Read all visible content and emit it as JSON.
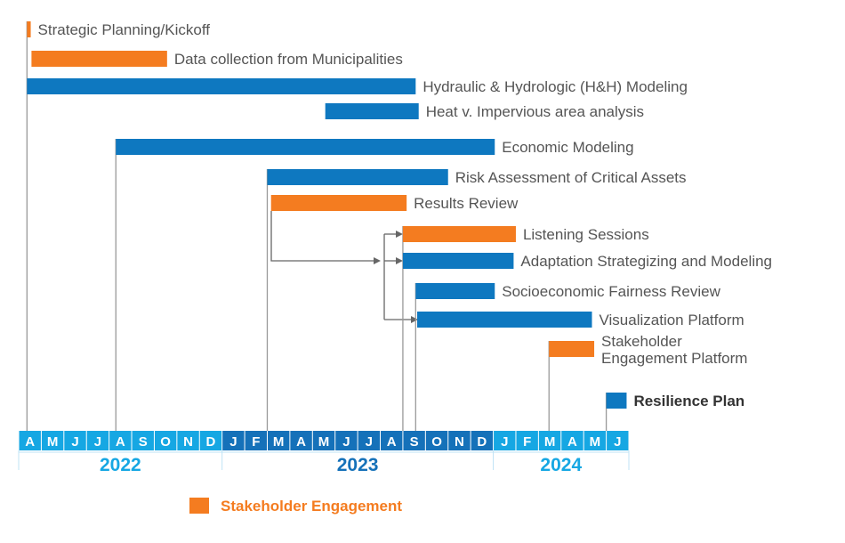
{
  "chart_data": {
    "type": "gantt",
    "title": "",
    "colors": {
      "work": "#0e78c0",
      "engagement": "#f47c20",
      "year_light": "#16a7e3",
      "year_dark": "#1571b9",
      "connector": "#666666"
    },
    "months": [
      "A",
      "M",
      "J",
      "J",
      "A",
      "S",
      "O",
      "N",
      "D",
      "J",
      "F",
      "M",
      "A",
      "M",
      "J",
      "J",
      "A",
      "S",
      "O",
      "N",
      "D",
      "J",
      "F",
      "M",
      "A",
      "M",
      "J"
    ],
    "years": [
      {
        "label": "2022",
        "months": 9
      },
      {
        "label": "2023",
        "months": 12
      },
      {
        "label": "2024",
        "months": 6
      }
    ],
    "tasks": [
      {
        "name": "Strategic Planning/Kickoff",
        "type": "engagement",
        "start": "2022-04-12",
        "end": "2022-04-17"
      },
      {
        "name": "Data collection from Municipalities",
        "type": "engagement",
        "start": "2022-04-18",
        "end": "2022-10-18"
      },
      {
        "name": "Hydraulic & Hydrologic (H&H) Modeling",
        "type": "work",
        "start": "2022-04-12",
        "end": "2023-09-18"
      },
      {
        "name": "Heat v. Impervious area analysis",
        "type": "work",
        "start": "2023-05-18",
        "end": "2023-09-22"
      },
      {
        "name": "Economic Modeling",
        "type": "work",
        "start": "2022-08-10",
        "end": "2024-01-03"
      },
      {
        "name": "Risk Assessment of Critical Assets",
        "type": "work",
        "start": "2023-03-01",
        "end": "2023-11-01"
      },
      {
        "name": "Results Review",
        "type": "engagement",
        "start": "2023-03-06",
        "end": "2023-09-06"
      },
      {
        "name": "Listening Sessions",
        "type": "engagement",
        "start": "2023-09-01",
        "end": "2024-02-01"
      },
      {
        "name": "Adaptation Strategizing and Modeling",
        "type": "work",
        "start": "2023-09-01",
        "end": "2024-01-28"
      },
      {
        "name": "Socioeconomic Fairness Review",
        "type": "work",
        "start": "2023-09-18",
        "end": "2024-01-03"
      },
      {
        "name": "Visualization Platform",
        "type": "work",
        "start": "2023-09-20",
        "end": "2024-05-12"
      },
      {
        "name": "Stakeholder\nEngagement Platform",
        "type": "engagement",
        "start": "2024-03-15",
        "end": "2024-05-15"
      },
      {
        "name": "Resilience Plan",
        "type": "work",
        "start": "2024-06-01",
        "end": "2024-06-28",
        "emphasis": true
      }
    ],
    "legend": [
      {
        "label": "Stakeholder Engagement",
        "type": "engagement"
      }
    ],
    "legend_position": "bottom"
  }
}
